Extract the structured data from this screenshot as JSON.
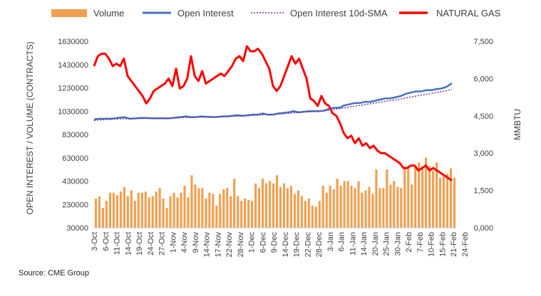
{
  "chart_data": {
    "type": "bar",
    "title": "",
    "source": "Source: CME Group",
    "legend": {
      "position": "top",
      "items": [
        {
          "label": "Volume",
          "color": "#F0A050",
          "kind": "bar"
        },
        {
          "label": "Open Interest",
          "color": "#4472C4",
          "kind": "line"
        },
        {
          "label": "Open Interest 10d-SMA",
          "color": "#7030A0",
          "kind": "dotted"
        },
        {
          "label": "NATURAL GAS",
          "color": "#FF0000",
          "kind": "line"
        }
      ]
    },
    "y_left": {
      "label": "OPEN INTEREST / VOLUME (CONTRACTS)",
      "min": 30000,
      "max": 1630000,
      "ticks": [
        "1630000",
        "1430000",
        "1230000",
        "1030000",
        "830000",
        "630000",
        "430000",
        "230000",
        "30000"
      ],
      "tick_values": [
        1630000,
        1430000,
        1230000,
        1030000,
        830000,
        630000,
        430000,
        230000,
        30000
      ]
    },
    "y_right": {
      "label": "MMBTU",
      "min": 0,
      "max": 7500,
      "ticks": [
        "7,500",
        "6,000",
        "4,500",
        "3,000",
        "1,500",
        "0,000"
      ],
      "tick_values": [
        7500,
        6000,
        4500,
        3000,
        1500,
        0
      ]
    },
    "x": {
      "categories": [
        "3-Oct",
        "6-Oct",
        "11-Oct",
        "14-Oct",
        "19-Oct",
        "24-Oct",
        "27-Oct",
        "1-Nov",
        "4-Nov",
        "9-Nov",
        "14-Nov",
        "17-Nov",
        "22-Nov",
        "28-Nov",
        "1-Dec",
        "6-Dec",
        "9-Dec",
        "14-Dec",
        "19-Dec",
        "22-Dec",
        "28-Dec",
        "3-Jan",
        "6-Jan",
        "11-Jan",
        "14-Jan",
        "20-Jan",
        "25-Jan",
        "30-Jan",
        "2-Feb",
        "7-Feb",
        "10-Feb",
        "15-Feb",
        "21-Feb",
        "24-Feb"
      ]
    },
    "series": [
      {
        "name": "Volume",
        "axis": "left",
        "values": [
          280000,
          300000,
          200000,
          260000,
          330000,
          330000,
          310000,
          340000,
          380000,
          300000,
          350000,
          260000,
          330000,
          330000,
          340000,
          290000,
          300000,
          340000,
          370000,
          280000,
          200000,
          300000,
          330000,
          290000,
          330000,
          390000,
          290000,
          480000,
          400000,
          370000,
          370000,
          280000,
          330000,
          320000,
          220000,
          320000,
          360000,
          370000,
          300000,
          450000,
          300000,
          260000,
          280000,
          270000,
          260000,
          410000,
          370000,
          450000,
          410000,
          430000,
          410000,
          480000,
          380000,
          410000,
          370000,
          390000,
          320000,
          350000,
          300000,
          260000,
          280000,
          220000,
          210000,
          260000,
          390000,
          330000,
          390000,
          360000,
          450000,
          390000,
          430000,
          430000,
          390000,
          370000,
          430000,
          330000,
          350000,
          380000,
          320000,
          530000,
          370000,
          370000,
          530000,
          400000,
          430000,
          380000,
          370000,
          540000,
          560000,
          400000,
          550000,
          590000,
          540000,
          630000,
          560000,
          520000,
          590000,
          460000,
          470000,
          490000,
          540000,
          460000
        ]
      },
      {
        "name": "Open Interest",
        "axis": "left",
        "values": [
          960000,
          965000,
          965000,
          965000,
          968000,
          975000,
          978000,
          965000,
          968000,
          972000,
          972000,
          970000,
          968000,
          970000,
          968000,
          970000,
          975000,
          980000,
          985000,
          978000,
          980000,
          985000,
          982000,
          980000,
          980000,
          985000,
          985000,
          990000,
          995000,
          990000,
          995000,
          1000000,
          1000000,
          1010000,
          1000000,
          1000000,
          1010000,
          1015000,
          1020000,
          1030000,
          1020000,
          1025000,
          1030000,
          1030000,
          1030000,
          1035000,
          1050000,
          1060000,
          1060000,
          1080000,
          1090000,
          1100000,
          1100000,
          1110000,
          1110000,
          1120000,
          1130000,
          1140000,
          1140000,
          1150000,
          1160000,
          1180000,
          1190000,
          1200000,
          1200000,
          1210000,
          1210000,
          1220000,
          1225000,
          1240000,
          1270000
        ]
      },
      {
        "name": "Open Interest 10d-SMA",
        "axis": "left",
        "values": [
          950000,
          955000,
          958000,
          960000,
          962000,
          964000,
          965000,
          966000,
          966000,
          967000,
          968000,
          969000,
          969000,
          970000,
          970000,
          970000,
          972000,
          974000,
          976000,
          977000,
          978000,
          979000,
          980000,
          981000,
          982000,
          983000,
          984000,
          986000,
          988000,
          989000,
          991000,
          994000,
          996000,
          999000,
          1001000,
          1003000,
          1005000,
          1008000,
          1012000,
          1016000,
          1019000,
          1022000,
          1025000,
          1027000,
          1029000,
          1033000,
          1039000,
          1046000,
          1052000,
          1059000,
          1066000,
          1073000,
          1079000,
          1087000,
          1093000,
          1100000,
          1108000,
          1115000,
          1121000,
          1128000,
          1135000,
          1143000,
          1151000,
          1160000,
          1167000,
          1175000,
          1182000,
          1190000,
          1198000,
          1207000,
          1218000
        ]
      },
      {
        "name": "NATURAL GAS",
        "axis": "right",
        "values": [
          6500,
          6900,
          7000,
          7000,
          6800,
          6500,
          6600,
          6500,
          6800,
          6100,
          5900,
          5700,
          5500,
          5300,
          5000,
          5200,
          5500,
          5600,
          5700,
          5800,
          6000,
          5700,
          6400,
          5600,
          5700,
          6000,
          6900,
          6100,
          5900,
          6300,
          5800,
          5900,
          6000,
          6100,
          6200,
          6100,
          6300,
          6500,
          6800,
          6900,
          6700,
          7300,
          7100,
          7100,
          7200,
          7000,
          6700,
          6400,
          5700,
          5500,
          5700,
          6100,
          6500,
          6900,
          6600,
          6800,
          6400,
          6000,
          5200,
          5100,
          4900,
          5300,
          5000,
          4900,
          4600,
          4500,
          4200,
          3800,
          3600,
          3700,
          3400,
          3600,
          3300,
          3400,
          3200,
          3300,
          3100,
          3000,
          3000,
          2900,
          2800,
          2700,
          2600,
          2400,
          2400,
          2500,
          2500,
          2300,
          2400,
          2500,
          2300,
          2400,
          2300,
          2200,
          2100,
          2000,
          1900
        ]
      }
    ],
    "grid": false
  }
}
